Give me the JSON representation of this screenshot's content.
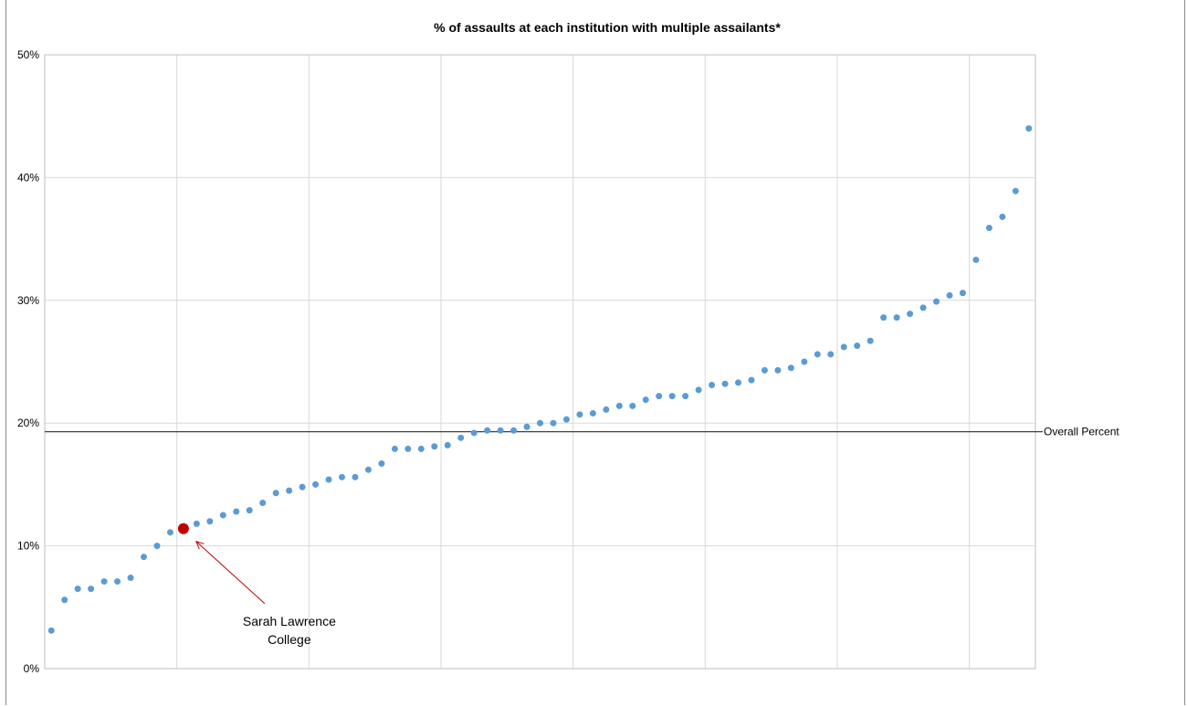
{
  "chart_data": {
    "type": "scatter",
    "title": "% of assaults at each institution with multiple assailants*",
    "xlabel": "",
    "ylabel": "",
    "ylim": [
      0,
      50
    ],
    "y_ticks": [
      "0%",
      "10%",
      "20%",
      "30%",
      "40%",
      "50%"
    ],
    "y_tick_values": [
      0,
      10,
      20,
      30,
      40,
      50
    ],
    "grid": true,
    "x_count": 75,
    "series": [
      {
        "color": "#5B9BD5",
        "x": [
          1,
          2,
          3,
          4,
          5,
          6,
          7,
          8,
          9,
          10,
          11,
          12,
          13,
          14,
          15,
          16,
          17,
          18,
          19,
          20,
          21,
          22,
          23,
          24,
          25,
          26,
          27,
          28,
          29,
          30,
          31,
          32,
          33,
          34,
          35,
          36,
          37,
          38,
          39,
          40,
          41,
          42,
          43,
          44,
          45,
          46,
          47,
          48,
          49,
          50,
          51,
          52,
          53,
          54,
          55,
          56,
          57,
          58,
          59,
          60,
          61,
          62,
          63,
          64,
          65,
          66,
          67,
          68,
          69,
          70,
          71,
          72,
          73,
          74,
          75
        ],
        "y": [
          3.1,
          5.6,
          6.5,
          6.5,
          7.1,
          7.1,
          7.4,
          9.1,
          10.0,
          11.1,
          11.4,
          11.8,
          12.0,
          12.5,
          12.8,
          12.9,
          13.5,
          14.3,
          14.5,
          14.8,
          15.0,
          15.4,
          15.6,
          15.6,
          16.2,
          16.7,
          17.9,
          17.9,
          17.9,
          18.1,
          18.2,
          18.8,
          19.2,
          19.4,
          19.4,
          19.4,
          19.7,
          20.0,
          20.0,
          20.3,
          20.7,
          20.8,
          21.1,
          21.4,
          21.4,
          21.9,
          22.2,
          22.2,
          22.2,
          22.7,
          23.1,
          23.2,
          23.3,
          23.5,
          24.3,
          24.3,
          24.5,
          25.0,
          25.6,
          25.6,
          26.2,
          26.3,
          26.7,
          28.6,
          28.6,
          28.9,
          29.4,
          29.9,
          30.4,
          30.6,
          33.3,
          35.9,
          36.8,
          38.9,
          44.0
        ]
      }
    ],
    "highlight": {
      "x": 11,
      "y": 11.4,
      "color": "#C00000"
    },
    "reference_line": {
      "y": 19.3,
      "label": "Overall Percent",
      "color": "#404040"
    },
    "annotation": {
      "lines": [
        "Sarah Lawrence",
        "College"
      ],
      "arrow_color": "#C00000"
    }
  }
}
